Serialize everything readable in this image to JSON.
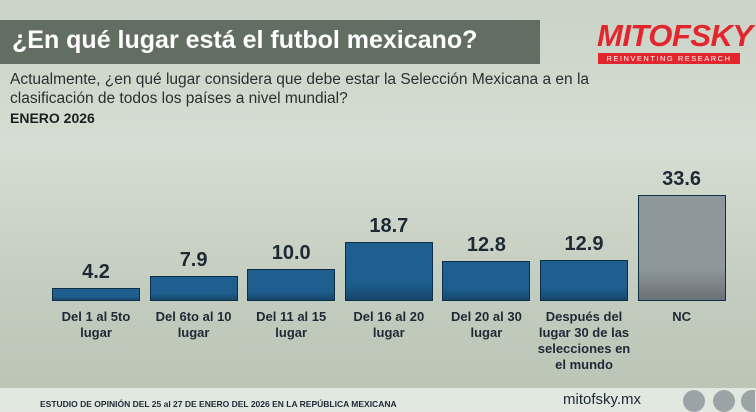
{
  "chart_data": {
    "type": "bar",
    "title": "¿En qué lugar está el futbol mexicano?",
    "subtitle": "Actualmente, ¿en qué lugar considera que debe estar la Selección Mexicana a en la clasificación de todos los países a nivel mundial?",
    "date_label": "ENERO 2026",
    "categories": [
      "Del 1 al 5to lugar",
      "Del 6to al 10 lugar",
      "Del 11 al 15 lugar",
      "Del 16 al 20 lugar",
      "Del 20 al 30 lugar",
      "Después del lugar 30 de las selecciones en el mundo",
      "NC"
    ],
    "values": [
      4.2,
      7.9,
      10.0,
      18.7,
      12.8,
      12.9,
      33.6
    ],
    "value_labels": [
      "4.2",
      "7.9",
      "10.0",
      "18.7",
      "12.8",
      "12.9",
      "33.6"
    ],
    "colors": [
      "#1e5f8f",
      "#1e5f8f",
      "#1e5f8f",
      "#1e5f8f",
      "#1e5f8f",
      "#1e5f8f",
      "#8e979c"
    ],
    "brand": "MITOFSKY",
    "tagline": "REINVENTING RESEARCH",
    "footer": "ESTUDIO DE OPINIÓN DEL 25 al 27 DE ENERO DEL 2026 EN LA REPÚBLICA MEXICANA",
    "website": "mitofsky.mx"
  }
}
